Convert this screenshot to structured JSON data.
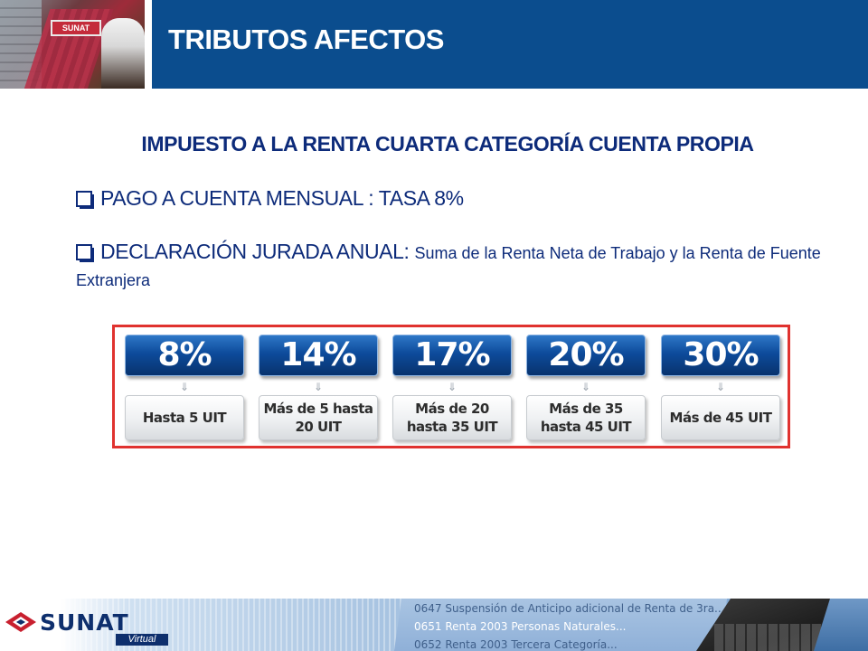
{
  "header": {
    "title": "TRIBUTOS AFECTOS",
    "photo_sign": "SUNAT"
  },
  "subtitle": "IMPUESTO A LA RENTA CUARTA  CATEGORÍA CUENTA  PROPIA",
  "bullets": [
    {
      "main": "PAGO A CUENTA MENSUAL : TASA 8%",
      "detail": ""
    },
    {
      "main": "DECLARACIÓN JURADA  ANUAL:",
      "detail": "Suma de la Renta Neta de Trabajo y la Renta de Fuente Extranjera"
    }
  ],
  "rates": [
    {
      "rate": "8%",
      "range": "Hasta 5 UIT"
    },
    {
      "rate": "14%",
      "range": "Más de 5 hasta 20 UIT"
    },
    {
      "rate": "17%",
      "range": "Más de 20 hasta 35 UIT"
    },
    {
      "rate": "20%",
      "range": "Más de 35 hasta 45 UIT"
    },
    {
      "rate": "30%",
      "range": "Más de 45 UIT"
    }
  ],
  "footer": {
    "logo": "SUNAT",
    "logo_sub": "Virtual",
    "lines": [
      "0647 Suspensión de Anticipo adicional de Renta de 3ra...",
      "0651 Renta 2003 Personas Naturales...",
      "0652 Renta 2003 Tercera Categoría..."
    ]
  },
  "colors": {
    "header_bar": "#0b4d8e",
    "text_blue": "#0d2b7a",
    "frame_red": "#e0322f",
    "pill_blue": "#0d4b9b"
  }
}
